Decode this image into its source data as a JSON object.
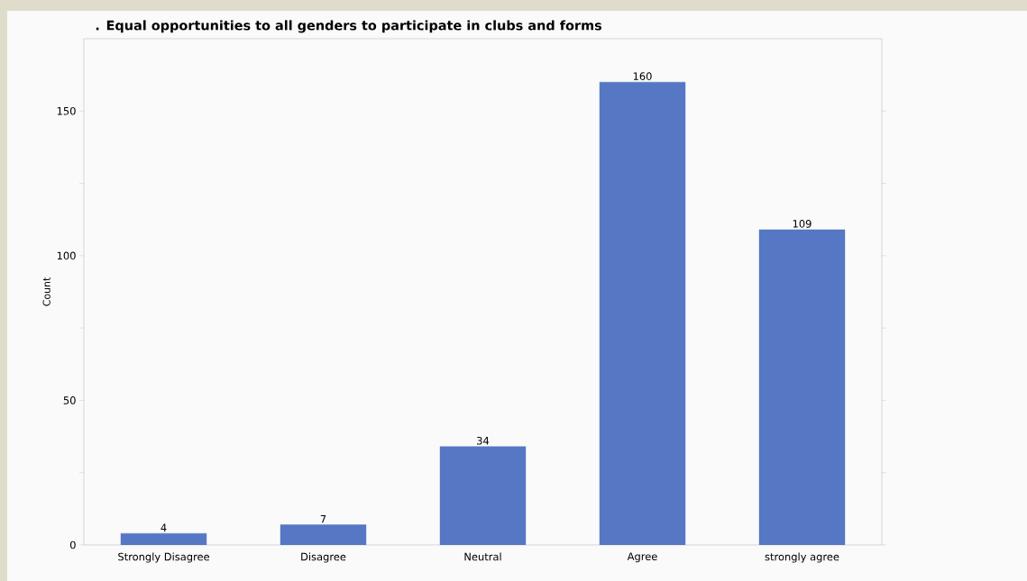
{
  "chart_data": {
    "type": "bar",
    "title": ". Equal opportunities to all genders to participate in clubs and forms",
    "ylabel": "Count",
    "categories": [
      "Strongly Disagree",
      "Disagree",
      "Neutral",
      "Agree",
      "strongly agree"
    ],
    "values": [
      4,
      7,
      34,
      160,
      109
    ],
    "color": "#5577c4",
    "ylim": [
      0,
      175
    ],
    "yticks": [
      0,
      {
        "value": 25,
        "label": null
      },
      50,
      {
        "value": 75,
        "label": null
      },
      100,
      {
        "value": 125,
        "label": null
      },
      150
    ],
    "data_labels": true,
    "grid": false
  }
}
